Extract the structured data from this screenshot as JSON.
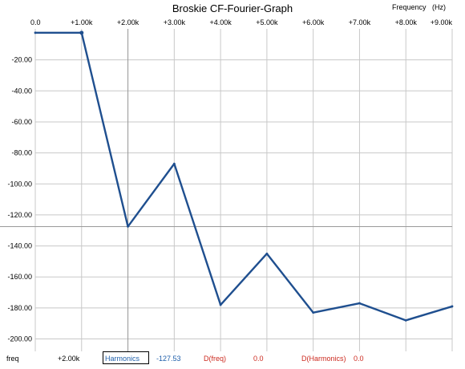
{
  "window": {
    "title": "Broskie CF-Fourier-Graph",
    "x_unit_label": "Frequency   (Hz)"
  },
  "chart_data": {
    "type": "line",
    "title": "Broskie CF-Fourier-Graph",
    "xlabel": "Frequency   (Hz)",
    "ylabel": "",
    "xlim": [
      0,
      9000
    ],
    "ylim": [
      -208,
      0
    ],
    "x_ticks": [
      0,
      1000,
      2000,
      3000,
      4000,
      5000,
      6000,
      7000,
      8000,
      9000
    ],
    "x_tick_labels": [
      "0.0",
      "+1.00k",
      "+2.00k",
      "+3.00k",
      "+4.00k",
      "+5.00k",
      "+6.00k",
      "+7.00k",
      "+8.00k",
      "+9.00k"
    ],
    "y_ticks": [
      -20,
      -40,
      -60,
      -80,
      -100,
      -120,
      -140,
      -160,
      -180,
      -200
    ],
    "y_tick_labels": [
      "-20.00",
      "-40.00",
      "-60.00",
      "-80.00",
      "-100.00",
      "-120.00",
      "-140.00",
      "-160.00",
      "-180.00",
      "-200.00"
    ],
    "grid": true,
    "cursor": {
      "x": 2000,
      "y": -127.53
    },
    "series": [
      {
        "x": [
          0,
          1000,
          2000,
          3000,
          4000,
          5000,
          6000,
          7000,
          8000,
          9000
        ],
        "y": [
          -2.5,
          -2.5,
          -127.5,
          -87,
          -178,
          -145,
          -183,
          -177,
          -188,
          -179
        ],
        "color": "#1f4f8f"
      }
    ]
  },
  "footer": {
    "label": "freq",
    "freq_value": "+2.00k",
    "harmonics_label": "Harmonics",
    "harmonics_value": "-127.53",
    "dfreq_label": "D(freq)",
    "dfreq_value": "0.0",
    "dharmonics_label": "D(Harmonics)",
    "dharmonics_value": "0.0",
    "colors": {
      "value_blue": "#1f5faa",
      "delta_red": "#cc2a1f"
    }
  }
}
